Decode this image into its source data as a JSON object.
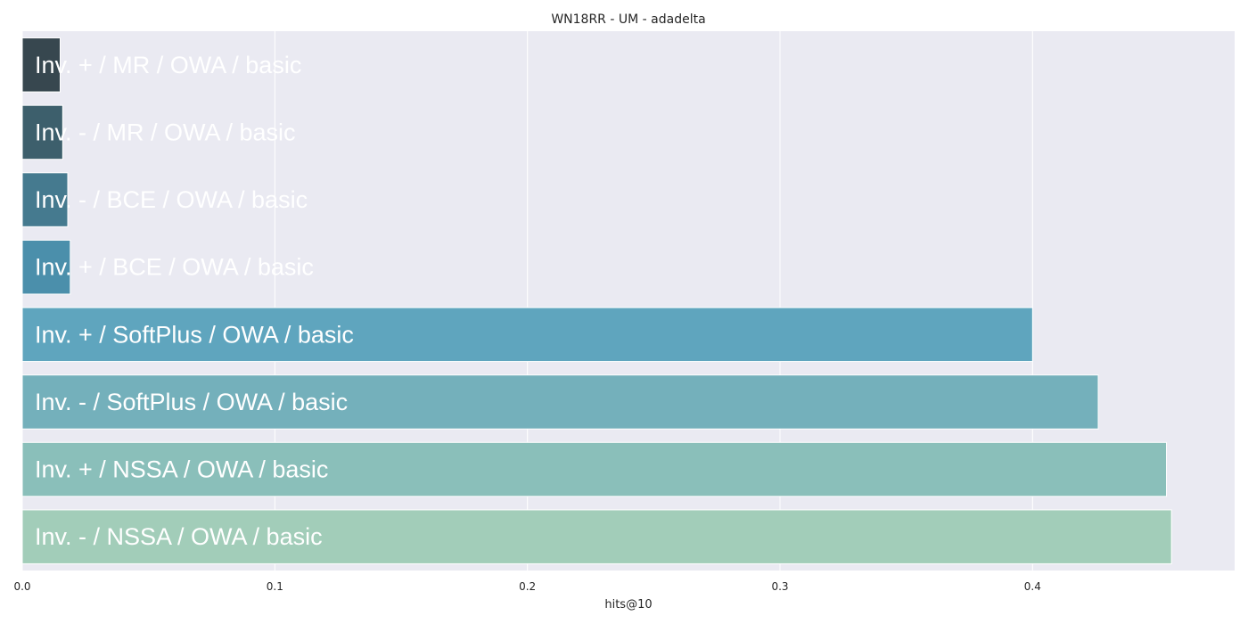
{
  "chart_data": {
    "type": "bar",
    "orientation": "horizontal",
    "title": "WN18RR - UM - adadelta",
    "xlabel": "hits@10",
    "ylabel": "",
    "xlim": [
      0.0,
      0.48
    ],
    "xticks": [
      0.0,
      0.1,
      0.2,
      0.3,
      0.4
    ],
    "xtick_labels": [
      "0.0",
      "0.1",
      "0.2",
      "0.3",
      "0.4"
    ],
    "grid": true,
    "categories": [
      "Inv. + / MR / OWA / basic",
      "Inv. - / MR / OWA / basic",
      "Inv. - / BCE / OWA / basic",
      "Inv. + / BCE / OWA / basic",
      "Inv. + / SoftPlus / OWA / basic",
      "Inv. - / SoftPlus / OWA / basic",
      "Inv. + / NSSA / OWA / basic",
      "Inv. - / NSSA / OWA / basic"
    ],
    "values": [
      0.015,
      0.016,
      0.018,
      0.019,
      0.4,
      0.426,
      0.453,
      0.455
    ],
    "colors": [
      "#37474f",
      "#3d5f6c",
      "#457a8f",
      "#4b8fab",
      "#5fa5be",
      "#74b0bb",
      "#8abfba",
      "#a2cdb9"
    ]
  },
  "colors": {
    "plot_background": "#eaeaf2",
    "grid": "#ffffff",
    "label_text": "#ffffff"
  }
}
